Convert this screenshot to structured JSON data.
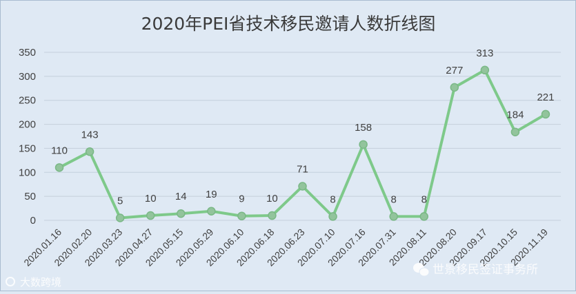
{
  "chart_data": {
    "type": "line",
    "title": "2020年PEI省技术移民邀请人数折线图",
    "xlabel": "",
    "ylabel": "",
    "ylim": [
      0,
      350
    ],
    "yticks": [
      0,
      50,
      100,
      150,
      200,
      250,
      300,
      350
    ],
    "grid": true,
    "legend": "none",
    "categories": [
      "2020.01.16",
      "2020.02.20",
      "2020.03.23",
      "2020.04.27",
      "2020.05.15",
      "2020.05.29",
      "2020.06.10",
      "2020.06.18",
      "2020.06.23",
      "2020.07.10",
      "2020.07.16",
      "2020.07.31",
      "2020.08.11",
      "2020.08.20",
      "2020.09.17",
      "2020.10.15",
      "2020.11.19"
    ],
    "series": [
      {
        "values": [
          110,
          143,
          5,
          10,
          14,
          19,
          9,
          10,
          71,
          8,
          158,
          8,
          8,
          277,
          313,
          184,
          221
        ]
      }
    ],
    "colors": {
      "line": "#7ec98a",
      "marker": "#92c49c",
      "background": "#dfe9f4",
      "grid": "#c4cfdb"
    }
  },
  "watermarks": {
    "left": "大数跨境",
    "right": "世景移民签证事务所"
  }
}
